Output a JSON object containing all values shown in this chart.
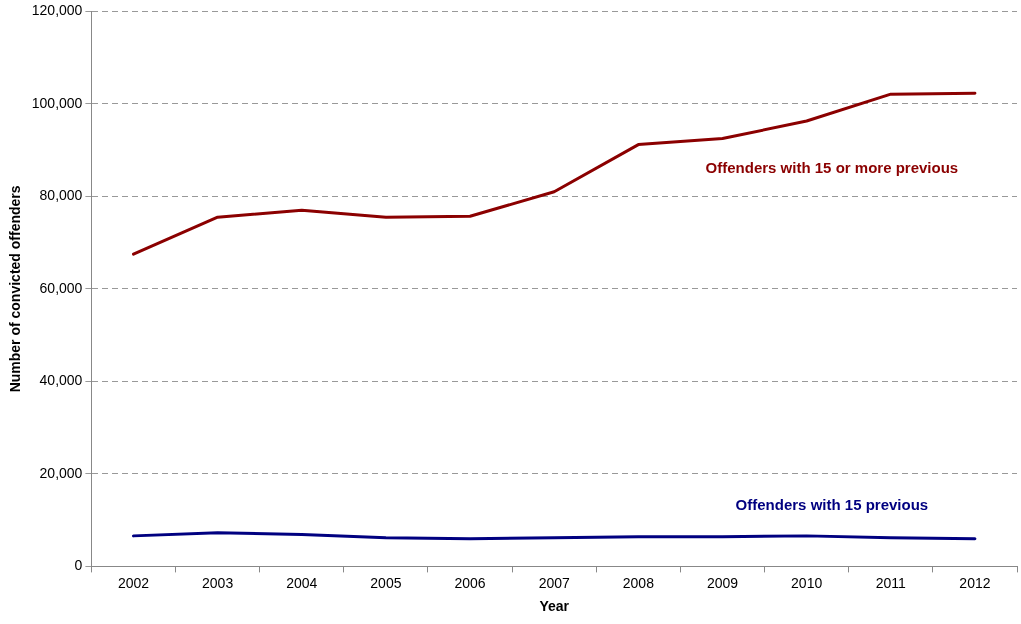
{
  "chart_data": {
    "type": "line",
    "xlabel": "Year",
    "ylabel": "Number of convicted offenders",
    "categories": [
      "2002",
      "2003",
      "2004",
      "2005",
      "2006",
      "2007",
      "2008",
      "2009",
      "2010",
      "2011",
      "2012"
    ],
    "series": [
      {
        "name": "Offenders with 15 or more previous",
        "color": "#8b0000",
        "values": [
          67500,
          75500,
          77000,
          75500,
          75700,
          81000,
          91200,
          92500,
          96300,
          102100,
          102300
        ]
      },
      {
        "name": "Offenders with 15 previous",
        "color": "#000080",
        "values": [
          6600,
          7300,
          6900,
          6200,
          6000,
          6200,
          6400,
          6400,
          6600,
          6200,
          6000
        ]
      }
    ],
    "ylim": [
      0,
      120000
    ],
    "yticks": [
      0,
      {
        "value": 20000,
        "label": "20,000"
      },
      {
        "value": 40000,
        "label": "40,000"
      },
      {
        "value": 60000,
        "label": "60,000"
      },
      {
        "value": 80000,
        "label": "80,000"
      },
      {
        "value": 100000,
        "label": "100,000"
      },
      {
        "value": 120000,
        "label": "120,000"
      }
    ],
    "grid": "y",
    "legend": false,
    "marker": "none",
    "line_style": "solid"
  }
}
